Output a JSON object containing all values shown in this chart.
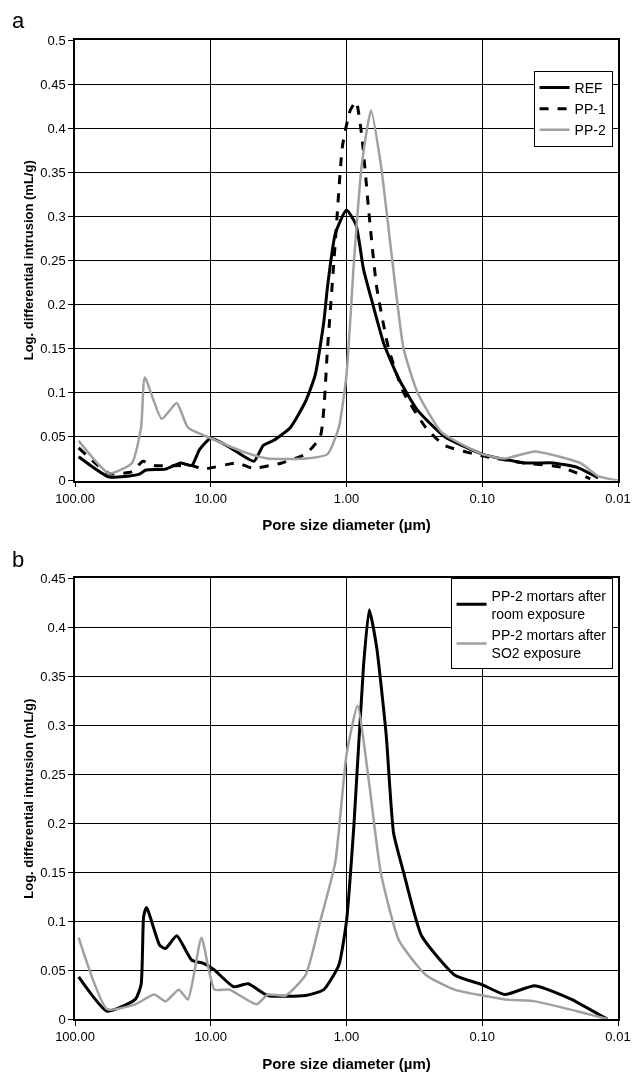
{
  "chart_data": [
    {
      "type": "line",
      "title": "a",
      "xlabel": "Pore size diameter (µm)",
      "ylabel": "Log. differential intrusion (mL/g)",
      "log": "x",
      "grid": true,
      "legend": "top right",
      "xlim": [
        100,
        0.01
      ],
      "xticks": [
        {
          "value": 100,
          "label": "100.00"
        },
        {
          "value": 10,
          "label": "10.00"
        },
        {
          "value": 1,
          "label": "1.00"
        },
        {
          "value": 0.1,
          "label": "0.10"
        },
        {
          "value": 0.01,
          "label": "0.01"
        }
      ],
      "ylim": [
        0,
        0.5
      ],
      "yticks": [
        0,
        0.05,
        0.1,
        0.15,
        0.2,
        0.25,
        0.3,
        0.35,
        0.4,
        0.45,
        0.5
      ],
      "series": [
        {
          "name": "REF",
          "color": "#000000",
          "line_style": "solid",
          "x": [
            94,
            56,
            34,
            30,
            21.5,
            16.7,
            13.8,
            12.1,
            10,
            7.3,
            4.8,
            4.1,
            3.4,
            2.6,
            2.0,
            1.7,
            1.47,
            1.38,
            1.21,
            1.0,
            0.85,
            0.75,
            0.64,
            0.53,
            0.41,
            0.3,
            0.19,
            0.1,
            0.049,
            0.03,
            0.02,
            0.014
          ],
          "values": [
            0.027,
            0.004,
            0.007,
            0.012,
            0.013,
            0.02,
            0.017,
            0.035,
            0.048,
            0.038,
            0.022,
            0.04,
            0.046,
            0.06,
            0.09,
            0.12,
            0.18,
            0.22,
            0.28,
            0.307,
            0.29,
            0.24,
            0.2,
            0.155,
            0.115,
            0.08,
            0.05,
            0.03,
            0.02,
            0.02,
            0.015,
            0.003
          ]
        },
        {
          "name": "PP-1",
          "color": "#000000",
          "line_style": "dashed",
          "x": [
            94,
            56,
            38,
            31.6,
            26.1,
            13.8,
            11.4,
            6.4,
            4.9,
            3.0,
            2.0,
            1.56,
            1.38,
            1.21,
            1.07,
            0.94,
            0.85,
            0.77,
            0.68,
            0.6,
            0.49,
            0.38,
            0.26,
            0.19,
            0.1,
            0.049,
            0.026,
            0.016
          ],
          "values": [
            0.037,
            0.008,
            0.01,
            0.022,
            0.017,
            0.017,
            0.013,
            0.02,
            0.014,
            0.02,
            0.03,
            0.05,
            0.15,
            0.27,
            0.38,
            0.42,
            0.43,
            0.39,
            0.3,
            0.22,
            0.15,
            0.1,
            0.06,
            0.04,
            0.028,
            0.02,
            0.015,
            0.002
          ]
        },
        {
          "name": "PP-2",
          "color": "#a0a0a0",
          "line_style": "solid",
          "x": [
            94,
            56,
            38,
            32.6,
            30.6,
            23,
            17.8,
            14.7,
            10,
            5.6,
            3.8,
            2.0,
            1.38,
            1.14,
            1.0,
            0.88,
            0.77,
            0.66,
            0.56,
            0.46,
            0.38,
            0.3,
            0.2,
            0.1,
            0.068,
            0.041,
            0.019,
            0.014,
            0.01
          ],
          "values": [
            0.045,
            0.008,
            0.02,
            0.06,
            0.117,
            0.07,
            0.088,
            0.06,
            0.048,
            0.032,
            0.025,
            0.025,
            0.03,
            0.06,
            0.12,
            0.25,
            0.36,
            0.42,
            0.36,
            0.25,
            0.15,
            0.1,
            0.055,
            0.03,
            0.025,
            0.033,
            0.02,
            0.005,
            0.0
          ]
        }
      ]
    },
    {
      "type": "line",
      "title": "b",
      "xlabel": "Pore size diameter (µm)",
      "ylabel": "Log. differential intrusion (mL/g)",
      "log": "x",
      "grid": true,
      "legend": "top right",
      "xlim": [
        100,
        0.01
      ],
      "xticks": [
        {
          "value": 100,
          "label": "100.00"
        },
        {
          "value": 10,
          "label": "10.00"
        },
        {
          "value": 1,
          "label": "1.00"
        },
        {
          "value": 0.1,
          "label": "0.10"
        },
        {
          "value": 0.01,
          "label": "0.01"
        }
      ],
      "ylim": [
        0,
        0.45
      ],
      "yticks": [
        0,
        0.05,
        0.1,
        0.15,
        0.2,
        0.25,
        0.3,
        0.35,
        0.4,
        0.45
      ],
      "series": [
        {
          "name": "PP-2 mortars after room exposure",
          "color": "#000000",
          "line_style": "solid",
          "x": [
            94,
            58,
            36,
            32.6,
            31.2,
            29.7,
            23.7,
            21.5,
            17.8,
            13.8,
            11.4,
            9.4,
            6.8,
            5.3,
            3.8,
            2.0,
            1.47,
            1.14,
            1.0,
            0.88,
            0.75,
            0.68,
            0.6,
            0.51,
            0.45,
            0.38,
            0.28,
            0.16,
            0.1,
            0.068,
            0.041,
            0.022,
            0.014,
            0.012
          ],
          "values": [
            0.043,
            0.008,
            0.02,
            0.035,
            0.105,
            0.114,
            0.075,
            0.072,
            0.085,
            0.06,
            0.057,
            0.05,
            0.033,
            0.036,
            0.024,
            0.024,
            0.03,
            0.055,
            0.1,
            0.2,
            0.36,
            0.418,
            0.38,
            0.29,
            0.19,
            0.15,
            0.085,
            0.045,
            0.035,
            0.025,
            0.034,
            0.02,
            0.005,
            0.0
          ]
        },
        {
          "name": "PP-2 mortars after SO2 exposure",
          "color": "#a0a0a0",
          "line_style": "solid",
          "x": [
            94,
            58,
            36,
            26.1,
            21.5,
            17.2,
            14.7,
            11.7,
            9.4,
            7.3,
            4.6,
            3.8,
            2.8,
            2.0,
            1.56,
            1.21,
            1.0,
            0.83,
            0.68,
            0.56,
            0.41,
            0.26,
            0.16,
            0.068,
            0.041,
            0.02,
            0.012
          ],
          "values": [
            0.083,
            0.01,
            0.015,
            0.025,
            0.018,
            0.03,
            0.02,
            0.083,
            0.03,
            0.03,
            0.015,
            0.025,
            0.024,
            0.045,
            0.1,
            0.16,
            0.27,
            0.32,
            0.24,
            0.15,
            0.08,
            0.045,
            0.03,
            0.02,
            0.018,
            0.008,
            0.0
          ]
        }
      ]
    }
  ]
}
